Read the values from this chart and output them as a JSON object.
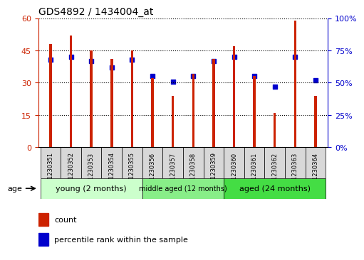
{
  "title": "GDS4892 / 1434004_at",
  "samples": [
    "GSM1230351",
    "GSM1230352",
    "GSM1230353",
    "GSM1230354",
    "GSM1230355",
    "GSM1230356",
    "GSM1230357",
    "GSM1230358",
    "GSM1230359",
    "GSM1230360",
    "GSM1230361",
    "GSM1230362",
    "GSM1230363",
    "GSM1230364"
  ],
  "counts": [
    48,
    52,
    45,
    41,
    45,
    32,
    24,
    34,
    41,
    47,
    33,
    16,
    59,
    24
  ],
  "percentile_ranks": [
    68,
    70,
    67,
    62,
    68,
    55,
    51,
    55,
    67,
    70,
    55,
    47,
    70,
    52
  ],
  "groups": [
    {
      "label": "young (2 months)",
      "start": 0,
      "end": 5
    },
    {
      "label": "middle aged (12 months)",
      "start": 5,
      "end": 9
    },
    {
      "label": "aged (24 months)",
      "start": 9,
      "end": 14
    }
  ],
  "group_colors": [
    "#ccffcc",
    "#88ee88",
    "#44dd44"
  ],
  "age_label": "age",
  "bar_color": "#cc2200",
  "dot_color": "#0000cc",
  "ylim_left": [
    0,
    60
  ],
  "ylim_right": [
    0,
    100
  ],
  "yticks_left": [
    0,
    15,
    30,
    45,
    60
  ],
  "yticks_right": [
    0,
    25,
    50,
    75,
    100
  ],
  "yticklabels_right": [
    "0%",
    "25%",
    "50%",
    "75%",
    "100%"
  ],
  "bg_color": "#ffffff",
  "plot_bg": "#ffffff",
  "tick_label_color_left": "#cc2200",
  "tick_label_color_right": "#0000cc",
  "bar_width": 0.12,
  "legend_count_label": "count",
  "legend_pct_label": "percentile rank within the sample",
  "sample_box_color": "#d8d8d8"
}
